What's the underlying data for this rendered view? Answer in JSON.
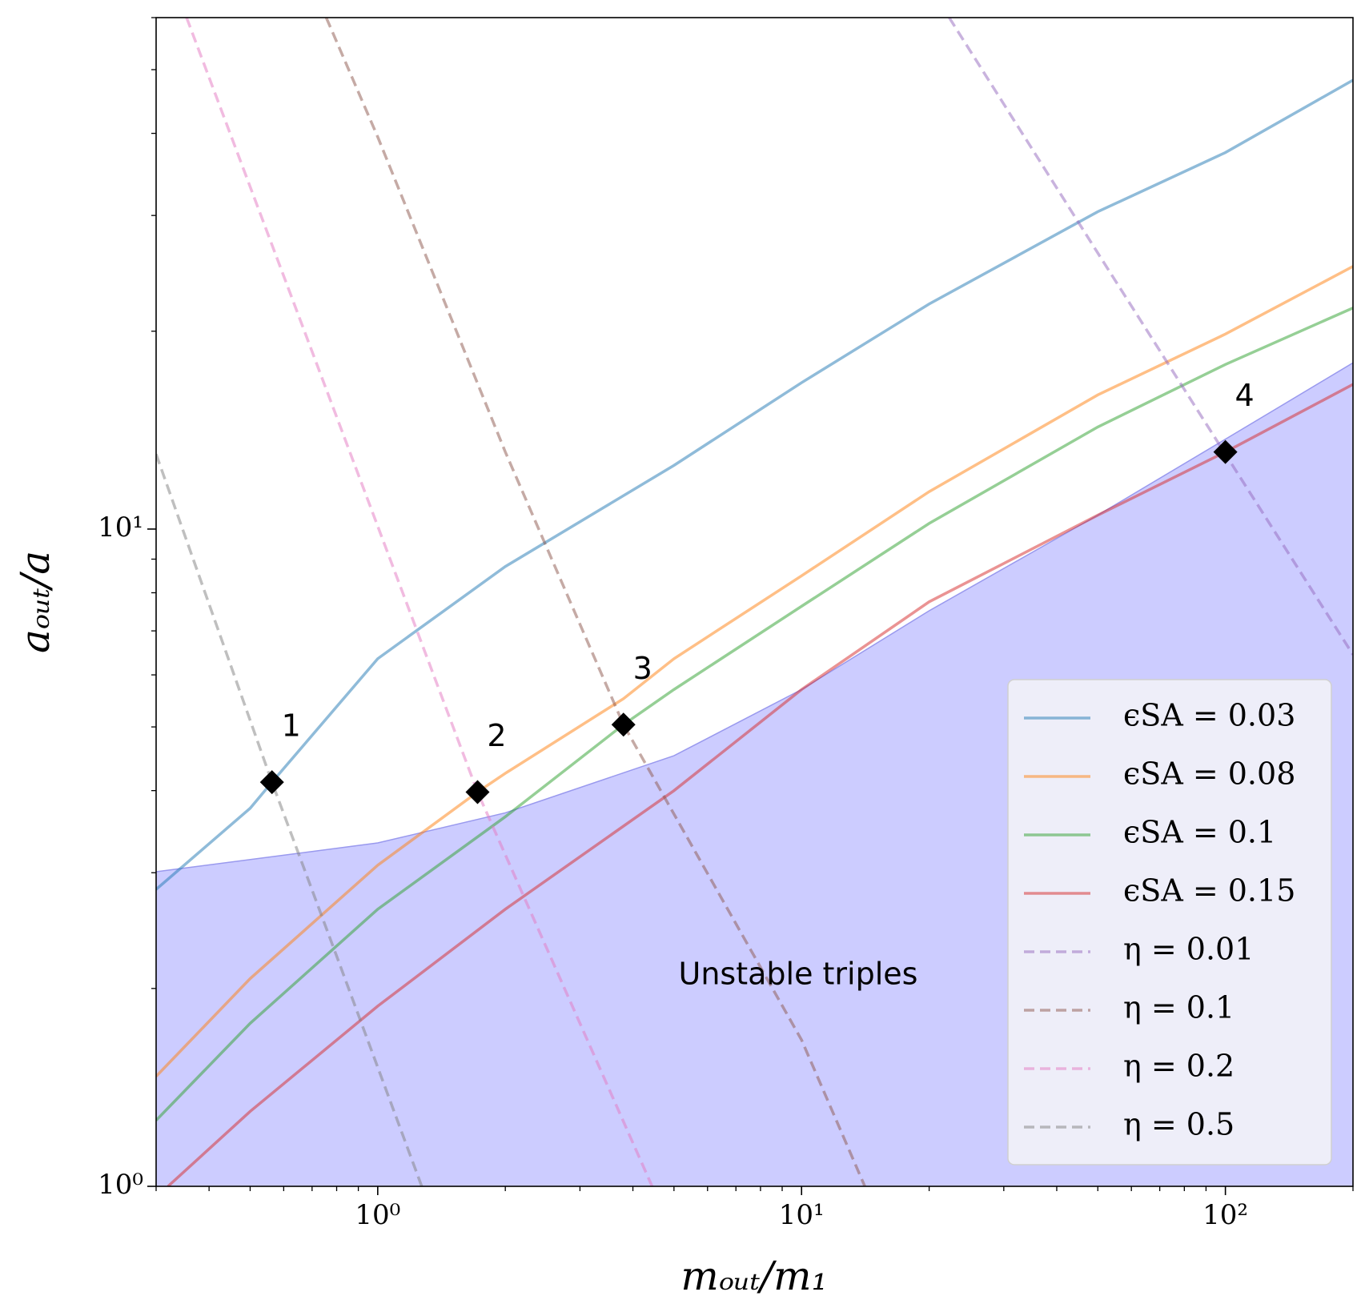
{
  "chart_data": {
    "type": "line",
    "xlabel": "mₒᵤₜ/m₁",
    "ylabel": "aₒᵤₜ/a",
    "xscale": "log",
    "yscale": "log",
    "xlim": [
      0.3,
      200
    ],
    "ylim": [
      1,
      60
    ],
    "xticks": [
      {
        "value": 1,
        "label": "10⁰"
      },
      {
        "value": 10,
        "label": "10¹"
      },
      {
        "value": 100,
        "label": "10²"
      }
    ],
    "yticks": [
      {
        "value": 1,
        "label": "10⁰"
      },
      {
        "value": 10,
        "label": "10¹"
      }
    ],
    "legend": "lower right",
    "region": {
      "color": "#ccccff",
      "edge": "#9999ee",
      "x": [
        0.3,
        1,
        2,
        5,
        10,
        20,
        50,
        100,
        200
      ],
      "values": [
        3.01,
        3.33,
        3.7,
        4.52,
        5.7,
        7.51,
        10.5,
        13.7,
        17.9
      ]
    },
    "annotation": "Unstable triples",
    "series": [
      {
        "name": "ϵSA = 0.03",
        "color": "#1f77b4",
        "linestyle": "solid",
        "x": [
          0.3,
          0.5,
          0.563,
          1,
          2,
          5,
          10,
          20,
          50,
          100,
          200
        ],
        "values": [
          2.83,
          3.76,
          4.12,
          6.35,
          8.77,
          12.5,
          16.7,
          22.0,
          30.4,
          37.4,
          48.2
        ]
      },
      {
        "name": "ϵSA = 0.08",
        "color": "#ff7f0e",
        "linestyle": "solid",
        "x": [
          0.3,
          0.5,
          1,
          1.72,
          2,
          3.8,
          5,
          10,
          20,
          50,
          100,
          200
        ],
        "values": [
          1.47,
          2.07,
          3.08,
          3.98,
          4.25,
          5.52,
          6.35,
          8.49,
          11.4,
          16.0,
          19.8,
          25.1
        ]
      },
      {
        "name": "ϵSA = 0.1",
        "color": "#2ca02c",
        "linestyle": "solid",
        "x": [
          0.3,
          0.5,
          1,
          2,
          3.8,
          5,
          10,
          20,
          50,
          100,
          200
        ],
        "values": [
          1.26,
          1.77,
          2.64,
          3.65,
          5.04,
          5.7,
          7.63,
          10.2,
          14.3,
          17.8,
          21.7
        ]
      },
      {
        "name": "ϵSA = 0.15",
        "color": "#d62728",
        "linestyle": "solid",
        "x": [
          0.32,
          0.5,
          1,
          2,
          5,
          10,
          20,
          50,
          100,
          200
        ],
        "values": [
          1.0,
          1.3,
          1.88,
          2.64,
          4.0,
          5.7,
          7.75,
          10.5,
          13.1,
          16.6
        ]
      },
      {
        "name": "η = 0.01",
        "color": "#9467bd",
        "linestyle": "dashed",
        "x": [
          22.3,
          50,
          100,
          200
        ],
        "values": [
          60,
          26.3,
          13.0,
          6.44
        ]
      },
      {
        "name": "η = 0.1",
        "color": "#8c564b",
        "linestyle": "dashed",
        "x": [
          0.756,
          1,
          2,
          3.8,
          10,
          14.1
        ],
        "values": [
          60,
          39.5,
          13.1,
          5.04,
          1.67,
          1
        ]
      },
      {
        "name": "η = 0.2",
        "color": "#e377c2",
        "linestyle": "dashed",
        "x": [
          0.354,
          1,
          1.72,
          3,
          4.44
        ],
        "values": [
          60,
          10.1,
          3.98,
          1.77,
          1
        ]
      },
      {
        "name": "η = 0.5",
        "color": "#7f7f7f",
        "linestyle": "dashed",
        "x": [
          0.3,
          0.563,
          0.8,
          1.27
        ],
        "values": [
          13.0,
          4.12,
          2.24,
          1
        ]
      }
    ],
    "markers": [
      {
        "label": "1",
        "x": 0.563,
        "y": 4.12
      },
      {
        "label": "2",
        "x": 1.72,
        "y": 3.98
      },
      {
        "label": "3",
        "x": 3.8,
        "y": 5.04
      },
      {
        "label": "4",
        "x": 100,
        "y": 13.1
      }
    ]
  }
}
